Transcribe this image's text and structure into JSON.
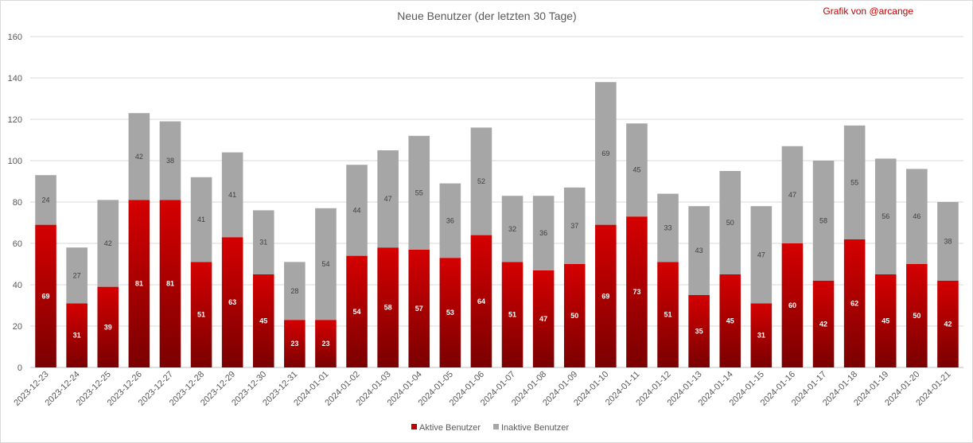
{
  "chart_data": {
    "type": "bar",
    "stacked": true,
    "title": "Neue Benutzer (der letzten 30 Tage)",
    "credit": "Grafik von @arcange",
    "categories": [
      "2023-12-23",
      "2023-12-24",
      "2023-12-25",
      "2023-12-26",
      "2023-12-27",
      "2023-12-28",
      "2023-12-29",
      "2023-12-30",
      "2023-12-31",
      "2024-01-01",
      "2024-01-02",
      "2024-01-03",
      "2024-01-04",
      "2024-01-05",
      "2024-01-06",
      "2024-01-07",
      "2024-01-08",
      "2024-01-09",
      "2024-01-10",
      "2024-01-11",
      "2024-01-12",
      "2024-01-13",
      "2024-01-14",
      "2024-01-15",
      "2024-01-16",
      "2024-01-17",
      "2024-01-18",
      "2024-01-19",
      "2024-01-20",
      "2024-01-21"
    ],
    "series": [
      {
        "name": "Aktive Benutzer",
        "color": "#c00000",
        "values": [
          69,
          31,
          39,
          81,
          81,
          51,
          63,
          45,
          23,
          23,
          54,
          58,
          57,
          53,
          64,
          51,
          47,
          50,
          69,
          73,
          51,
          35,
          45,
          31,
          60,
          42,
          62,
          45,
          50,
          42
        ]
      },
      {
        "name": "Inaktive Benutzer",
        "color": "#a6a6a6",
        "values": [
          24,
          27,
          42,
          42,
          38,
          41,
          41,
          31,
          28,
          54,
          44,
          47,
          55,
          36,
          52,
          32,
          36,
          37,
          69,
          45,
          33,
          43,
          50,
          47,
          47,
          58,
          55,
          56,
          46,
          38
        ]
      }
    ],
    "ylim": [
      0,
      160
    ],
    "yticks": [
      0,
      20,
      40,
      60,
      80,
      100,
      120,
      140,
      160
    ],
    "grid": true,
    "legend_position": "bottom"
  }
}
